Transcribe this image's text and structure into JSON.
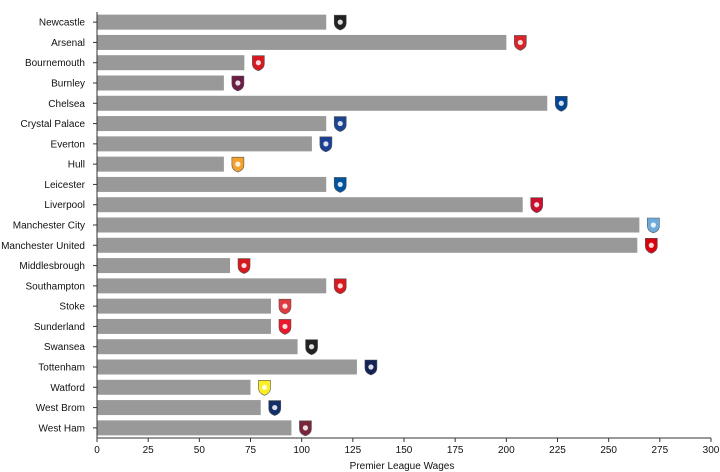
{
  "chart_data": {
    "type": "bar",
    "orientation": "horizontal",
    "categories": [
      "Newcastle",
      "Arsenal",
      "Bournemouth",
      "Burnley",
      "Chelsea",
      "Crystal Palace",
      "Everton",
      "Hull",
      "Leicester",
      "Liverpool",
      "Manchester City",
      "Manchester United",
      "Middlesbrough",
      "Southampton",
      "Stoke",
      "Sunderland",
      "Swansea",
      "Tottenham",
      "Watford",
      "West Brom",
      "West Ham"
    ],
    "values": [
      112,
      200,
      72,
      62,
      220,
      112,
      105,
      62,
      112,
      208,
      265,
      264,
      65,
      112,
      85,
      85,
      98,
      127,
      75,
      80,
      95
    ],
    "xlabel": "Premier League Wages",
    "ylabel": "",
    "xlim": [
      0,
      300
    ],
    "xticks": [
      "0",
      "25",
      "50",
      "75",
      "100",
      "125",
      "150",
      "175",
      "200",
      "225",
      "250",
      "275",
      "300"
    ],
    "bar_color": "#999999",
    "grid": false,
    "legend": "none",
    "marker_icons": [
      "newcastle-crest-icon",
      "arsenal-crest-icon",
      "bournemouth-crest-icon",
      "burnley-crest-icon",
      "chelsea-crest-icon",
      "crystal-palace-crest-icon",
      "everton-crest-icon",
      "hull-crest-icon",
      "leicester-crest-icon",
      "liverpool-crest-icon",
      "manchester-city-crest-icon",
      "manchester-united-crest-icon",
      "middlesbrough-crest-icon",
      "southampton-crest-icon",
      "stoke-crest-icon",
      "sunderland-crest-icon",
      "swansea-crest-icon",
      "tottenham-crest-icon",
      "watford-crest-icon",
      "west-brom-crest-icon",
      "west-ham-crest-icon"
    ],
    "marker_colors": [
      "#222222",
      "#d7262b",
      "#d71920",
      "#6c1d45",
      "#034694",
      "#1b458f",
      "#1b3f94",
      "#f5a12d",
      "#0053a0",
      "#c8102e",
      "#6cabdd",
      "#da020e",
      "#d7191f",
      "#d71920",
      "#e03a3e",
      "#eb172b",
      "#222222",
      "#132257",
      "#fbee23",
      "#122f67",
      "#7a263a"
    ]
  }
}
